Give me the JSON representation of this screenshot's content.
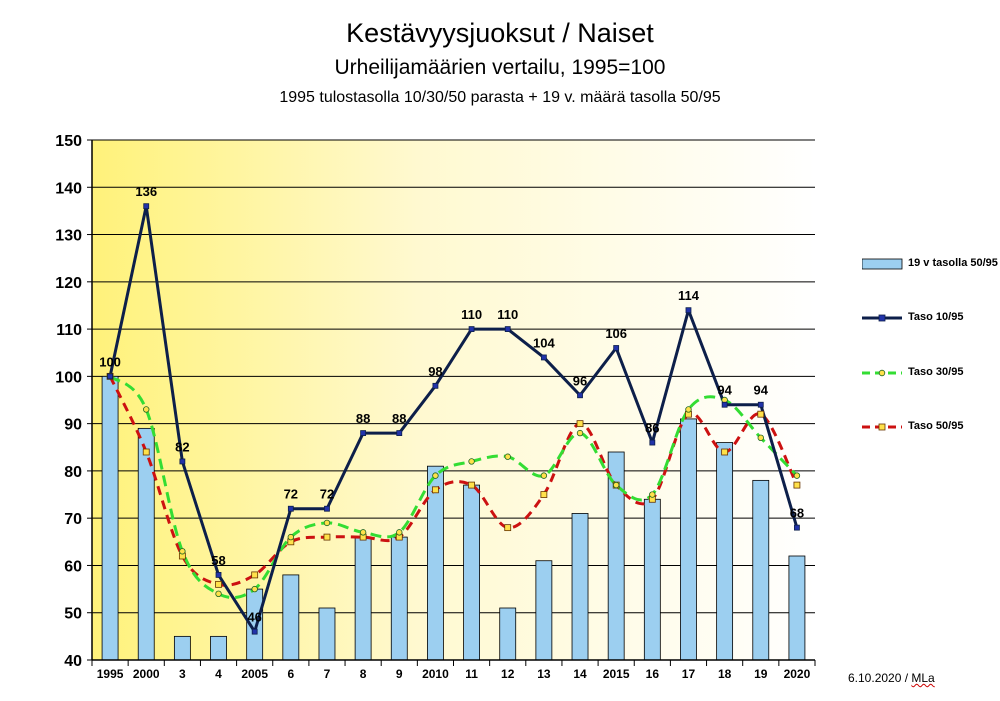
{
  "chart_data": {
    "type": "bar+line",
    "title": "Kestävyysjuoksut / Naiset",
    "subtitle": "Urheilijamäärien vertailu, 1995=100",
    "subtitle2": "1995 tulostasolla 10/30/50 parasta + 19 v. määrä tasolla 50/95",
    "categories": [
      "1995",
      "2000",
      "3",
      "4",
      "2005",
      "6",
      "7",
      "8",
      "9",
      "2010",
      "11",
      "12",
      "13",
      "14",
      "2015",
      "16",
      "17",
      "18",
      "19",
      "2020"
    ],
    "ylim": [
      40,
      150
    ],
    "yticks": [
      40,
      50,
      60,
      70,
      80,
      90,
      100,
      110,
      120,
      130,
      140,
      150
    ],
    "grid": true,
    "legend_position": "right",
    "series": [
      {
        "name": "19 v tasolla 50/95",
        "kind": "bar",
        "color": "#9ccff0",
        "values": [
          100,
          89,
          45,
          45,
          55,
          58,
          51,
          66,
          66,
          81,
          77,
          51,
          61,
          71,
          84,
          74,
          91,
          86,
          78,
          62
        ]
      },
      {
        "name": "Taso 10/95",
        "kind": "line",
        "color": "#0d1f4a",
        "values": [
          100,
          136,
          82,
          58,
          46,
          72,
          72,
          88,
          88,
          98,
          110,
          110,
          104,
          96,
          106,
          86,
          114,
          94,
          94,
          68
        ],
        "labels": [
          "100",
          "136",
          "82",
          "58",
          "46",
          "72",
          "72",
          "88",
          "88",
          "98",
          "110",
          "110",
          "104",
          "96",
          "106",
          "86",
          "114",
          "94",
          "94",
          "68"
        ]
      },
      {
        "name": "Taso 30/95",
        "kind": "line",
        "color": "#33dd33",
        "values": [
          100,
          93,
          63,
          54,
          55,
          66,
          69,
          67,
          67,
          79,
          82,
          83,
          79,
          88,
          77,
          75,
          93,
          95,
          87,
          79
        ]
      },
      {
        "name": "Taso 50/95",
        "kind": "line",
        "color": "#cc1111",
        "values": [
          100,
          84,
          62,
          56,
          58,
          65,
          66,
          66,
          66,
          76,
          77,
          68,
          75,
          90,
          77,
          74,
          92,
          84,
          92,
          77
        ]
      }
    ]
  },
  "footer": {
    "date": "6.10.2020 / ",
    "author": "MLa"
  }
}
